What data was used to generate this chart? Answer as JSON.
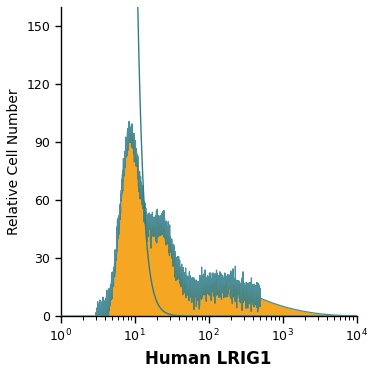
{
  "title": "",
  "xlabel": "Human LRIG1",
  "ylabel": "Relative Cell Number",
  "xlim": [
    1,
    10000
  ],
  "ylim": [
    0,
    160
  ],
  "yticks": [
    0,
    30,
    60,
    90,
    120,
    150
  ],
  "background_color": "#ffffff",
  "teal_color": "#2e7d8c",
  "orange_color": "#f5a623",
  "xlabel_fontsize": 12,
  "ylabel_fontsize": 10,
  "tick_labelsize": 9
}
